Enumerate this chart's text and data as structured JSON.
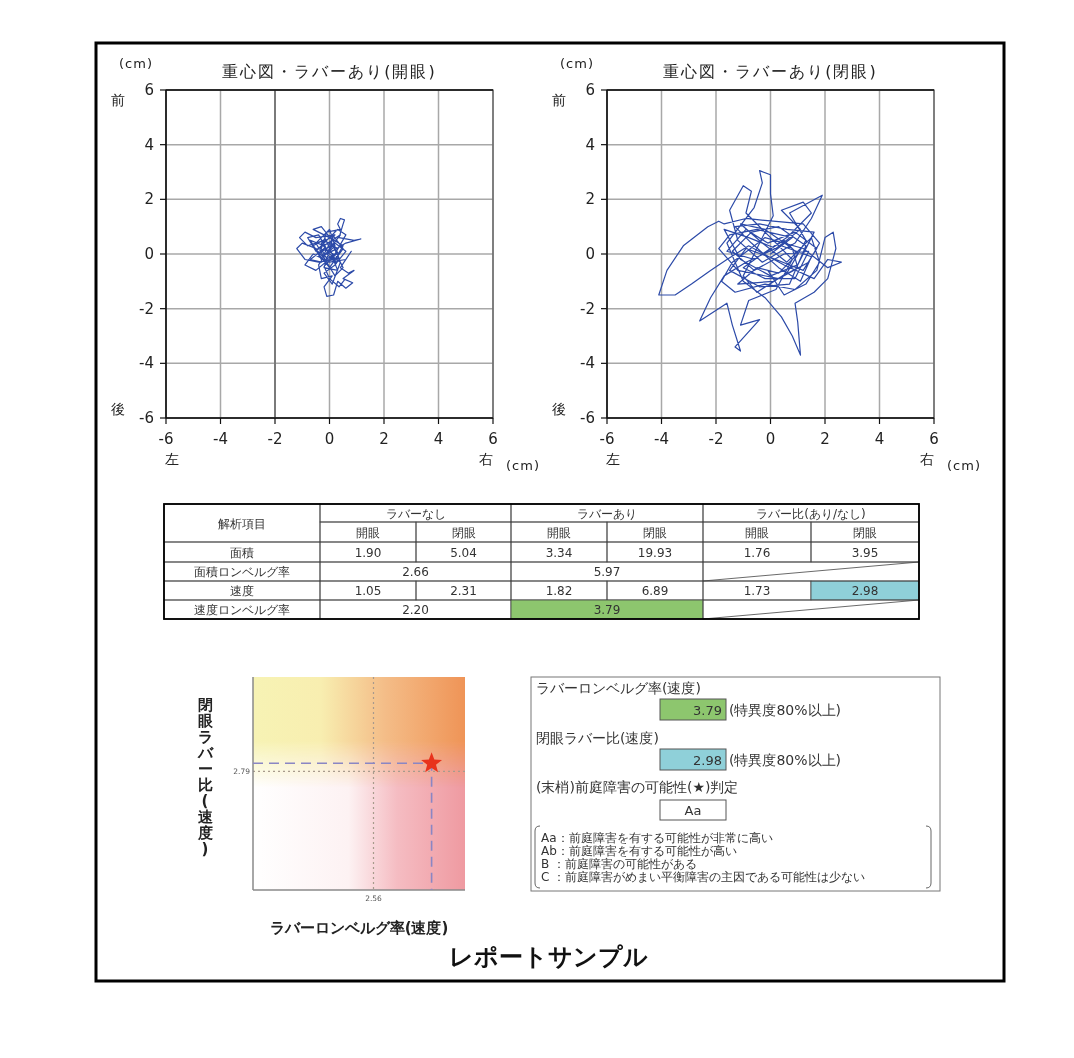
{
  "chart_data": [
    {
      "type": "line",
      "title": "重心図・ラバーあり(開眼)",
      "xlabel": "(cm)",
      "ylabel": "(cm)",
      "annotations": [
        "前",
        "後",
        "左",
        "右"
      ],
      "xlim": [
        -6,
        6
      ],
      "ylim": [
        -6,
        6
      ],
      "xticks": [
        -6,
        -4,
        -2,
        0,
        2,
        4,
        6
      ],
      "yticks": [
        -6,
        -4,
        -2,
        0,
        2,
        4,
        6
      ],
      "grid": true,
      "ref_lines": [
        {
          "axis": "x",
          "value": -2,
          "color": "#7a7a7a"
        }
      ],
      "series": [
        {
          "color": "#2c4aa8",
          "x": [
            0.0,
            -0.3,
            0.2,
            -0.5,
            -0.9,
            -1.1,
            -0.8,
            -0.2,
            0.3,
            -0.4,
            -0.1,
            0.4,
            0.3,
            0.4,
            0.55,
            0.5,
            0.35,
            0.9,
            1.15,
            0.6,
            0.1,
            -0.5,
            -1.0,
            -1.2,
            -0.9,
            -0.4,
            0.2,
            0.5,
            0.0,
            -0.6,
            -0.3,
            0.1,
            -0.2,
            0.3,
            0.1,
            -0.5,
            -0.9,
            -0.6,
            0.0,
            0.6,
            0.8,
            0.4,
            0.7,
            0.9,
            0.5,
            0.85,
            0.6,
            0.3,
            0.15,
            -0.1,
            -0.2,
            0.1,
            -0.3,
            -0.4,
            0.0,
            0.4,
            -0.2,
            -0.7,
            -0.3,
            0.2,
            0.6,
            0.2,
            -0.2,
            0.1,
            0.4,
            0.0,
            -0.4,
            -0.8,
            -0.5,
            0.3,
            0.6,
            0.2,
            -0.3,
            -0.7,
            -0.2,
            0.3,
            0.5,
            0.2,
            -0.1,
            -0.5,
            0.0,
            0.2,
            -0.1,
            0.25,
            -0.15,
            -0.6,
            -0.25,
            0.15,
            0.5,
            0.0,
            -0.4,
            0.1,
            0.35,
            -0.05,
            -0.35,
            0.05,
            0.3,
            -0.2,
            0.0,
            0.35,
            0.55
          ],
          "values": [
            0.0,
            0.4,
            0.7,
            0.6,
            0.8,
            0.6,
            0.3,
            0.5,
            0.2,
            -0.1,
            0.8,
            0.9,
            1.1,
            1.3,
            1.25,
            1.1,
            0.6,
            0.5,
            0.55,
            0.4,
            0.1,
            0.2,
            0.4,
            0.2,
            -0.2,
            -0.3,
            -0.2,
            0.3,
            0.6,
            0.9,
            1.0,
            0.5,
            -0.5,
            -0.6,
            -0.1,
            -0.6,
            -0.4,
            0.0,
            -0.3,
            -0.2,
            0.1,
            -0.5,
            -0.7,
            -0.6,
            -0.9,
            -1.05,
            -1.25,
            -1.0,
            -1.5,
            -1.55,
            -1.2,
            -0.8,
            -0.9,
            -0.4,
            0.2,
            0.7,
            0.3,
            0.5,
            -0.2,
            0.4,
            0.1,
            -0.4,
            -0.7,
            -1.1,
            -0.3,
            0.0,
            0.7,
            0.6,
            0.1,
            0.9,
            0.7,
            0.0,
            -0.3,
            -0.2,
            0.2,
            -0.1,
            -0.5,
            -0.8,
            -0.3,
            0.4,
            0.9,
            0.3,
            0.0,
            -0.35,
            0.55,
            0.3,
            -0.1,
            0.65,
            0.2,
            -0.5,
            0.0,
            0.35,
            -0.15,
            -0.25,
            0.25,
            0.45,
            0.05,
            -0.45,
            -0.9,
            -1.2,
            -0.95
          ]
        }
      ]
    },
    {
      "type": "line",
      "title": "重心図・ラバーあり(閉眼)",
      "xlabel": "(cm)",
      "ylabel": "(cm)",
      "annotations": [
        "前",
        "後",
        "左",
        "右"
      ],
      "xlim": [
        -6,
        6
      ],
      "ylim": [
        -6,
        6
      ],
      "xticks": [
        -6,
        -4,
        -2,
        0,
        2,
        4,
        6
      ],
      "yticks": [
        -6,
        -4,
        -2,
        0,
        2,
        4,
        6
      ],
      "grid": true,
      "series": [
        {
          "color": "#2c4aa8",
          "x": [
            0.0,
            0.8,
            -0.5,
            -1.5,
            -1.9,
            -1.2,
            0.3,
            1.4,
            1.8,
            1.2,
            0.1,
            -0.9,
            -1.7,
            -1.9,
            -2.3,
            -3.2,
            -3.8,
            -4.1,
            -3.5,
            -2.9,
            -2.2,
            -1.6,
            -0.8,
            0.5,
            1.6,
            2.1,
            2.6,
            2.1,
            1.2,
            -0.2,
            -1.4,
            -1.8,
            -1.3,
            -0.2,
            0.9,
            1.7,
            2.0,
            2.3,
            2.4,
            2.1,
            1.6,
            0.9,
            1.0,
            1.1,
            0.8,
            0.4,
            -0.2,
            -1.0,
            -1.6,
            -0.6,
            -0.3,
            -0.4,
            0.0,
            0.0,
            0.1,
            -0.5,
            -1.0,
            -0.5,
            0.6,
            1.3,
            0.7,
            1.9,
            1.5,
            0.9,
            -0.3,
            -1.2,
            -1.5,
            -1.0,
            -0.7,
            -0.9,
            -0.1,
            0.8,
            0.2,
            -0.8,
            -1.1,
            -0.4,
            -1.3,
            -1.1,
            -1.4,
            -1.6,
            -2.6,
            -2.2,
            -1.7,
            -0.9,
            0.4,
            1.5,
            1.1,
            0.3,
            -0.7,
            -1.3,
            -0.4,
            0.6,
            1.6,
            1.0,
            0.0,
            -1.1,
            -1.7,
            -0.8,
            0.2,
            1.1,
            0.4,
            1.2,
            1.5,
            0.6,
            -0.3,
            -1.0,
            -0.2,
            0.9,
            1.4,
            0.5,
            -0.6,
            -1.4,
            -0.7,
            0.3,
            1.3,
            0.7,
            -0.4,
            -1.5,
            -0.9,
            0.2,
            1.2,
            1.7,
            0.9,
            -0.1,
            -0.9,
            -1.6,
            -0.6,
            0.5,
            1.0,
            0.3,
            -0.5,
            -1.2,
            0.1,
            1.0,
            0.8,
            -0.2,
            -1.1,
            -0.3,
            0.6,
            1.5,
            1.8,
            1.3,
            0.5,
            -0.1
          ],
          "values": [
            0.0,
            0.6,
            0.9,
            0.7,
            0.2,
            -0.6,
            -0.9,
            -0.3,
            0.4,
            1.1,
            1.2,
            1.3,
            1.1,
            1.2,
            1.0,
            0.3,
            -0.6,
            -1.5,
            -1.5,
            -1.1,
            -0.6,
            -0.2,
            0.3,
            -0.4,
            -0.9,
            -0.2,
            -0.3,
            -0.5,
            0.2,
            0.6,
            -0.3,
            -1.0,
            -1.4,
            -1.1,
            -1.3,
            -0.6,
            0.6,
            0.8,
            0.2,
            -0.9,
            -1.4,
            -1.8,
            -2.5,
            -3.7,
            -3.0,
            -2.3,
            -1.6,
            -1.0,
            0.4,
            1.7,
            2.6,
            3.05,
            2.9,
            2.2,
            1.4,
            0.2,
            -0.8,
            -1.4,
            -0.7,
            0.5,
            1.5,
            2.15,
            1.3,
            0.4,
            -0.3,
            0.5,
            1.6,
            2.5,
            2.3,
            1.5,
            0.7,
            -0.2,
            -1.3,
            -1.7,
            -2.6,
            -2.4,
            -3.4,
            -3.55,
            -2.6,
            -1.8,
            -2.45,
            -1.6,
            -0.8,
            -0.3,
            0.3,
            -0.1,
            -1.0,
            -0.5,
            0.4,
            1.0,
            1.1,
            0.9,
            0.8,
            -0.4,
            -0.8,
            -0.2,
            0.9,
            0.6,
            0.2,
            0.9,
            1.6,
            1.9,
            1.5,
            0.6,
            0.0,
            -0.5,
            -0.9,
            -0.9,
            0.1,
            0.0,
            -0.6,
            0.1,
            0.8,
            1.0,
            0.3,
            -1.1,
            -1.2,
            -0.6,
            0.2,
            -0.2,
            -0.6,
            0.2,
            0.8,
            0.4,
            0.9,
            0.1,
            -0.2,
            0.5,
            0.0,
            -0.7,
            -0.5,
            -1.1,
            -1.0,
            -0.5,
            0.2,
            0.9,
            1.1,
            0.4,
            -0.3,
            0.6,
            -0.3,
            -1.1,
            -1.5,
            -0.6
          ]
        }
      ]
    },
    {
      "type": "other",
      "annotations": [
        "解析項目",
        "ラバーなし",
        "ラバーあり",
        "ラバー比(あり/なし)",
        "開眼",
        "閉眼",
        "開眼",
        "閉眼",
        "開眼",
        "閉眼",
        "面積",
        "1.90",
        "5.04",
        "3.34",
        "19.93",
        "1.76",
        "3.95",
        "面積ロンベルグ率",
        "2.66",
        "5.97",
        "速度",
        "1.05",
        "2.31",
        "1.82",
        "6.89",
        "1.73",
        "2.98",
        "速度ロンベルグ率",
        "2.20",
        "3.79"
      ],
      "colors": [
        null,
        null,
        null,
        null,
        null,
        null,
        null,
        null,
        null,
        null,
        null,
        null,
        null,
        null,
        null,
        null,
        null,
        null,
        null,
        null,
        null,
        null,
        null,
        null,
        null,
        null,
        "#8fd0d9",
        null,
        null,
        "#8dc66e"
      ]
    },
    {
      "type": "other",
      "xlabel": "ラバーロンベルグ率(速度)",
      "ylabel": "閉眼ラバー比(速度)",
      "annotations": [
        "2.56",
        "2.79"
      ]
    },
    {
      "type": "other",
      "annotations": [
        "ラバーロンベルグ率(速度)",
        "3.79",
        "(特異度80%以上)",
        "閉眼ラバー比(速度)",
        "2.98",
        "(特異度80%以上)",
        "(末梢)前庭障害の可能性(★)判定",
        "Aa",
        "Aa：前庭障害を有する可能性が非常に高い",
        "Ab：前庭障害を有する可能性が高い",
        "B ：前庭障害の可能性がある",
        "C ：前庭障害がめまい平衡障害の主因である可能性は少ない"
      ],
      "colors": [
        null,
        "#8dc66e",
        null,
        null,
        "#8fd0d9",
        null,
        null,
        "#ffffff",
        null,
        null,
        null,
        null
      ]
    },
    {
      "type": "other",
      "title": "レポートサンプル"
    }
  ]
}
